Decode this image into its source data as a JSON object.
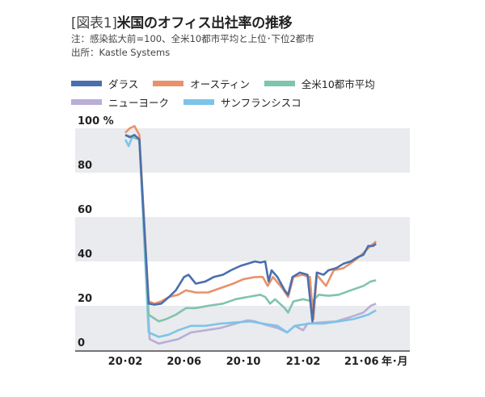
{
  "title_prefix": "[図表1]",
  "title": "米国のオフィス出社率の推移",
  "note": "注：感染拡大前=100、全米10都市平均と上位･下位2都市",
  "source": "出所：Kastle Systems",
  "chart_data": {
    "type": "line",
    "title": "米国のオフィス出社率の推移",
    "xlabel": "年･月",
    "ylabel": "%",
    "ylim": [
      0,
      100
    ],
    "y_ticks": [
      "0",
      "20",
      "40",
      "60",
      "80",
      "100 %"
    ],
    "y_tick_values": [
      0,
      20,
      40,
      60,
      80,
      100
    ],
    "x_ticks": [
      {
        "label": "20･02",
        "date": "2020-02-01"
      },
      {
        "label": "20･06",
        "date": "2020-06-01"
      },
      {
        "label": "20･10",
        "date": "2020-10-01"
      },
      {
        "label": "21･02",
        "date": "2021-02-01"
      },
      {
        "label": "21･06",
        "date": "2021-06-01"
      }
    ],
    "xlim": [
      "2020-01-20",
      "2021-08-15"
    ],
    "grid": "alternating gray bands (0-20, 40-60, 80-100)",
    "band_color": "#e9ebee",
    "legend_placement": "top",
    "series": [
      {
        "name": "ダラス",
        "color": "#4a6fae",
        "points": [
          [
            "2020-02-01",
            97
          ],
          [
            "2020-02-10",
            96
          ],
          [
            "2020-02-20",
            97
          ],
          [
            "2020-03-01",
            95
          ],
          [
            "2020-03-20",
            21
          ],
          [
            "2020-04-01",
            20.5
          ],
          [
            "2020-04-15",
            21
          ],
          [
            "2020-05-01",
            24
          ],
          [
            "2020-05-15",
            27
          ],
          [
            "2020-06-01",
            33
          ],
          [
            "2020-06-10",
            34
          ],
          [
            "2020-06-25",
            30
          ],
          [
            "2020-07-15",
            31
          ],
          [
            "2020-08-01",
            33
          ],
          [
            "2020-08-20",
            34
          ],
          [
            "2020-09-05",
            36
          ],
          [
            "2020-09-25",
            38
          ],
          [
            "2020-10-10",
            39
          ],
          [
            "2020-10-25",
            40
          ],
          [
            "2020-11-05",
            39.5
          ],
          [
            "2020-11-15",
            40
          ],
          [
            "2020-11-22",
            31
          ],
          [
            "2020-11-28",
            36
          ],
          [
            "2020-12-10",
            33
          ],
          [
            "2020-12-25",
            27
          ],
          [
            "2021-01-01",
            25
          ],
          [
            "2021-01-10",
            33
          ],
          [
            "2021-01-25",
            35
          ],
          [
            "2021-02-10",
            34
          ],
          [
            "2021-02-20",
            13
          ],
          [
            "2021-03-01",
            35
          ],
          [
            "2021-03-15",
            34
          ],
          [
            "2021-03-25",
            36
          ],
          [
            "2021-04-10",
            37
          ],
          [
            "2021-04-25",
            39
          ],
          [
            "2021-05-10",
            40
          ],
          [
            "2021-05-25",
            42
          ],
          [
            "2021-06-05",
            43
          ],
          [
            "2021-06-15",
            47
          ],
          [
            "2021-06-25",
            47
          ],
          [
            "2021-07-01",
            48
          ]
        ]
      },
      {
        "name": "オースティン",
        "color": "#e8926c",
        "points": [
          [
            "2020-02-01",
            98
          ],
          [
            "2020-02-10",
            100
          ],
          [
            "2020-02-20",
            101
          ],
          [
            "2020-03-01",
            97
          ],
          [
            "2020-03-20",
            22
          ],
          [
            "2020-04-01",
            21
          ],
          [
            "2020-04-15",
            22
          ],
          [
            "2020-05-01",
            24
          ],
          [
            "2020-05-20",
            25
          ],
          [
            "2020-06-05",
            27
          ],
          [
            "2020-06-25",
            26
          ],
          [
            "2020-07-20",
            26
          ],
          [
            "2020-08-15",
            28
          ],
          [
            "2020-09-10",
            30
          ],
          [
            "2020-10-01",
            32
          ],
          [
            "2020-10-25",
            33
          ],
          [
            "2020-11-10",
            33
          ],
          [
            "2020-11-20",
            29
          ],
          [
            "2020-12-01",
            33
          ],
          [
            "2020-12-20",
            28
          ],
          [
            "2021-01-01",
            24
          ],
          [
            "2021-01-12",
            33
          ],
          [
            "2021-01-30",
            34
          ],
          [
            "2021-02-15",
            33
          ],
          [
            "2021-02-22",
            14
          ],
          [
            "2021-03-01",
            34
          ],
          [
            "2021-03-20",
            29
          ],
          [
            "2021-04-05",
            36
          ],
          [
            "2021-04-25",
            37
          ],
          [
            "2021-05-15",
            40
          ],
          [
            "2021-06-01",
            43
          ],
          [
            "2021-06-15",
            46
          ],
          [
            "2021-07-01",
            49
          ]
        ]
      },
      {
        "name": "全米10都市平均",
        "color": "#7fc4ad",
        "points": [
          [
            "2020-02-01",
            97
          ],
          [
            "2020-02-15",
            96
          ],
          [
            "2020-03-01",
            95
          ],
          [
            "2020-03-20",
            16
          ],
          [
            "2020-04-10",
            13
          ],
          [
            "2020-04-25",
            14
          ],
          [
            "2020-05-15",
            16
          ],
          [
            "2020-06-05",
            19
          ],
          [
            "2020-06-25",
            19
          ],
          [
            "2020-07-20",
            20
          ],
          [
            "2020-08-20",
            21
          ],
          [
            "2020-09-15",
            23
          ],
          [
            "2020-10-10",
            24
          ],
          [
            "2020-11-05",
            25
          ],
          [
            "2020-11-15",
            24
          ],
          [
            "2020-11-25",
            21
          ],
          [
            "2020-12-05",
            23
          ],
          [
            "2020-12-25",
            19
          ],
          [
            "2021-01-01",
            17
          ],
          [
            "2021-01-12",
            22
          ],
          [
            "2021-02-01",
            23
          ],
          [
            "2021-02-20",
            22
          ],
          [
            "2021-03-05",
            25
          ],
          [
            "2021-03-25",
            24.5
          ],
          [
            "2021-04-15",
            25
          ],
          [
            "2021-05-10",
            27
          ],
          [
            "2021-06-05",
            29
          ],
          [
            "2021-06-20",
            31
          ],
          [
            "2021-07-01",
            31.5
          ]
        ]
      },
      {
        "name": "ニューヨーク",
        "color": "#b9aed6",
        "points": [
          [
            "2020-02-01",
            97
          ],
          [
            "2020-02-15",
            96
          ],
          [
            "2020-03-01",
            95
          ],
          [
            "2020-03-22",
            5
          ],
          [
            "2020-04-10",
            3
          ],
          [
            "2020-04-30",
            4
          ],
          [
            "2020-05-20",
            5
          ],
          [
            "2020-06-15",
            8
          ],
          [
            "2020-07-15",
            9
          ],
          [
            "2020-08-15",
            10
          ],
          [
            "2020-09-15",
            12
          ],
          [
            "2020-10-10",
            13.5
          ],
          [
            "2020-10-25",
            13
          ],
          [
            "2020-11-15",
            11.5
          ],
          [
            "2020-12-10",
            10
          ],
          [
            "2020-12-30",
            8
          ],
          [
            "2021-01-15",
            11
          ],
          [
            "2021-02-01",
            9
          ],
          [
            "2021-02-10",
            12
          ],
          [
            "2021-03-10",
            12.5
          ],
          [
            "2021-04-10",
            13
          ],
          [
            "2021-05-10",
            15
          ],
          [
            "2021-06-05",
            17
          ],
          [
            "2021-06-20",
            20
          ],
          [
            "2021-07-01",
            21
          ]
        ]
      },
      {
        "name": "サンフランシスコ",
        "color": "#7cc4e8",
        "points": [
          [
            "2020-02-01",
            95
          ],
          [
            "2020-02-08",
            92
          ],
          [
            "2020-02-15",
            96
          ],
          [
            "2020-03-01",
            95
          ],
          [
            "2020-03-20",
            8
          ],
          [
            "2020-04-10",
            6
          ],
          [
            "2020-04-30",
            7
          ],
          [
            "2020-05-20",
            9
          ],
          [
            "2020-06-15",
            11
          ],
          [
            "2020-07-15",
            11
          ],
          [
            "2020-08-15",
            12
          ],
          [
            "2020-09-15",
            12.5
          ],
          [
            "2020-10-15",
            13
          ],
          [
            "2020-11-10",
            12
          ],
          [
            "2020-12-10",
            11
          ],
          [
            "2020-12-30",
            8
          ],
          [
            "2021-01-15",
            11
          ],
          [
            "2021-02-15",
            12
          ],
          [
            "2021-03-15",
            12
          ],
          [
            "2021-04-15",
            13
          ],
          [
            "2021-05-15",
            14
          ],
          [
            "2021-06-15",
            16
          ],
          [
            "2021-07-01",
            18
          ]
        ]
      }
    ]
  }
}
